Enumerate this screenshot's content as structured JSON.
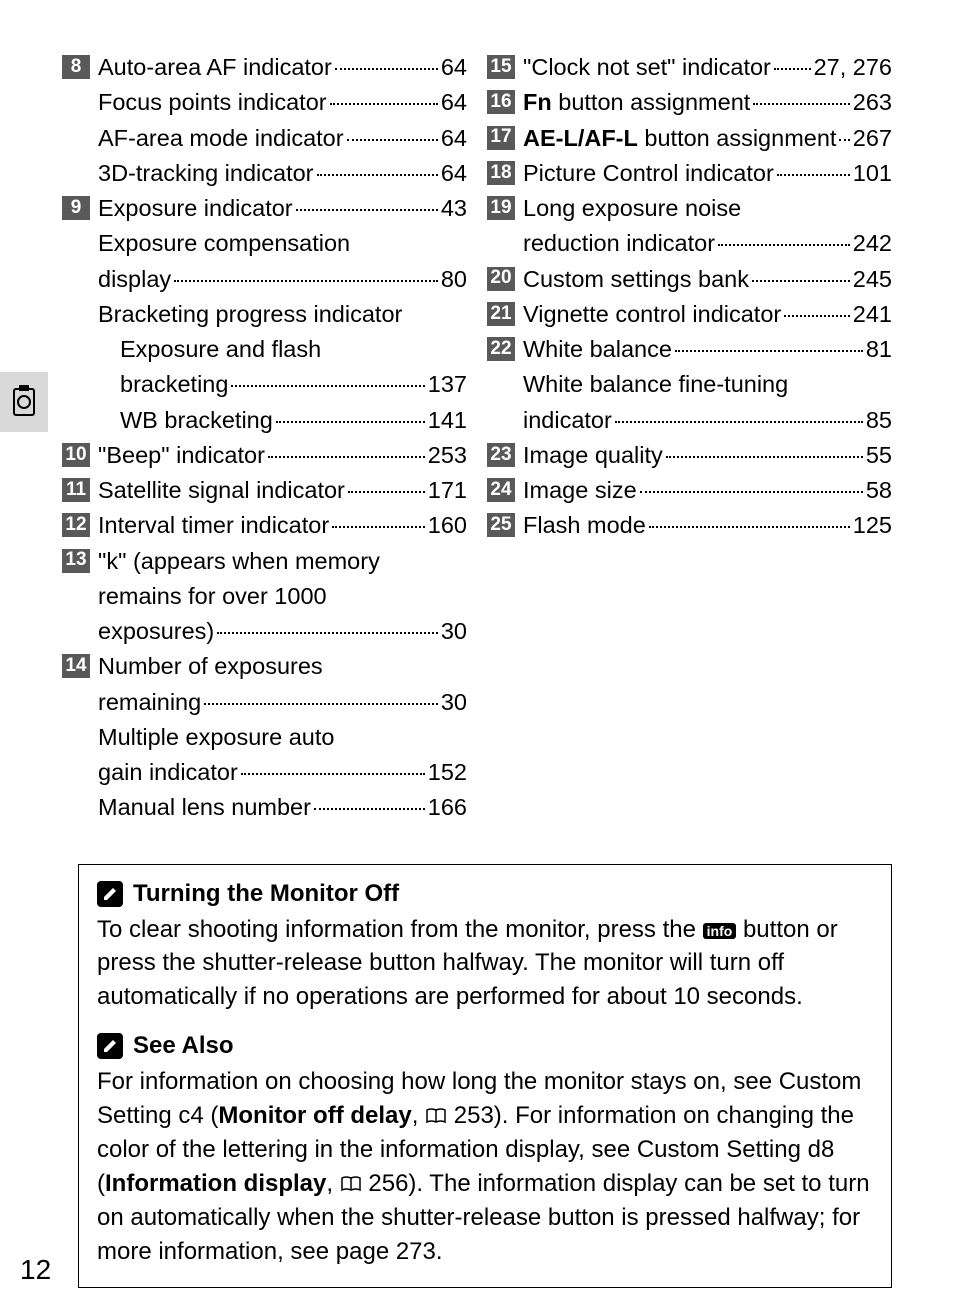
{
  "left": [
    {
      "num": "8",
      "lines": [
        {
          "label": "Auto-area AF indicator",
          "pg": "64"
        },
        {
          "label": "Focus points indicator",
          "pg": "64"
        },
        {
          "label": "AF-area mode indicator",
          "pg": "64"
        },
        {
          "label": "3D-tracking indicator",
          "pg": "64"
        }
      ]
    },
    {
      "num": "9",
      "lines": [
        {
          "label": "Exposure indicator",
          "pg": "43"
        },
        {
          "label": "Exposure compensation display",
          "pg": "80",
          "wrap": true
        },
        {
          "label": "Bracketing progress indicator",
          "nopg": true
        },
        {
          "label": "Exposure and flash bracketing",
          "pg": "137",
          "indent": true,
          "wrap": true
        },
        {
          "label": "WB bracketing",
          "pg": "141",
          "indent": true
        }
      ]
    },
    {
      "num": "10",
      "lines": [
        {
          "label": "\"Beep\" indicator",
          "pg": "253"
        }
      ]
    },
    {
      "num": "11",
      "lines": [
        {
          "label": "Satellite signal indicator",
          "pg": "171"
        }
      ]
    },
    {
      "num": "12",
      "lines": [
        {
          "label": "Interval timer indicator",
          "pg": "160"
        }
      ]
    },
    {
      "num": "13",
      "lines": [
        {
          "label": "\"k\" (appears when memory remains for over 1000 exposures)",
          "pg": "30",
          "wrap3": true
        }
      ]
    },
    {
      "num": "14",
      "lines": [
        {
          "label": "Number of exposures remaining",
          "pg": "30",
          "wrap": true
        },
        {
          "label": "Multiple exposure auto gain indicator",
          "pg": "152",
          "wrap": true
        },
        {
          "label": "Manual lens number",
          "pg": "166"
        }
      ]
    }
  ],
  "right": [
    {
      "num": "15",
      "lines": [
        {
          "label": "\"Clock not set\" indicator",
          "pg": "27, 276"
        }
      ]
    },
    {
      "num": "16",
      "lines": [
        {
          "label": "<b>Fn</b> button assignment",
          "pg": "263",
          "html": true
        }
      ]
    },
    {
      "num": "17",
      "lines": [
        {
          "label": "<b>AE-L/AF-L</b> button assignment",
          "pg": "267",
          "html": true
        }
      ]
    },
    {
      "num": "18",
      "lines": [
        {
          "label": "Picture Control indicator",
          "pg": "101"
        }
      ]
    },
    {
      "num": "19",
      "lines": [
        {
          "label": "Long exposure noise reduction indicator",
          "pg": "242",
          "wrap": true
        }
      ]
    },
    {
      "num": "20",
      "lines": [
        {
          "label": "Custom settings bank",
          "pg": "245"
        }
      ]
    },
    {
      "num": "21",
      "lines": [
        {
          "label": "Vignette control indicator",
          "pg": "241"
        }
      ]
    },
    {
      "num": "22",
      "lines": [
        {
          "label": "White balance",
          "pg": "81"
        },
        {
          "label": "White balance fine-tuning indicator",
          "pg": "85",
          "wrap": true
        }
      ]
    },
    {
      "num": "23",
      "lines": [
        {
          "label": "Image quality",
          "pg": "55"
        }
      ]
    },
    {
      "num": "24",
      "lines": [
        {
          "label": "Image size",
          "pg": "58"
        }
      ]
    },
    {
      "num": "25",
      "lines": [
        {
          "label": "Flash mode",
          "pg": "125"
        }
      ]
    }
  ],
  "note": {
    "title1": "Turning the Monitor Off",
    "body1_a": "To clear shooting information from the monitor, press the ",
    "body1_b": " button or press the shutter-release button halfway.  The monitor will turn off automatically if no operations are performed for about 10 seconds.",
    "title2": "See Also",
    "body2_a": "For information on choosing how long the monitor stays on, see Custom Setting c4 (",
    "body2_b": "Monitor off delay",
    "body2_c": ", ",
    "body2_d": " 253). For information on changing the color of the lettering in the information display, see Custom Setting d8 (",
    "body2_e": "Information display",
    "body2_f": ", ",
    "body2_g": " 256). The information display can be set to turn on automatically when the shutter-release button is pressed halfway; for more information, see page 273.",
    "info_label": "info"
  },
  "pageNumber": "12"
}
